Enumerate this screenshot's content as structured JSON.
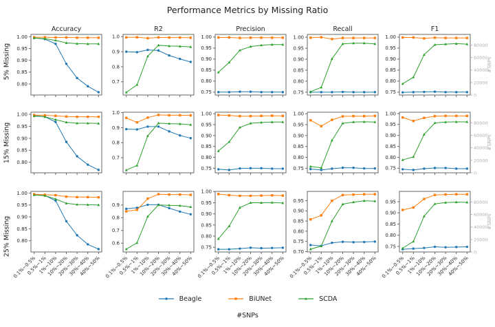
{
  "chart_data": {
    "type": "line",
    "title": "Performance Metrics by Missing Ratio",
    "xlabel": "#SNPs",
    "x_categories": [
      "0.1%~0.5%",
      "0.5%~1%",
      "1%~10%",
      "10%~20%",
      "20%~30%",
      "30%~40%",
      "40%~50%"
    ],
    "columns": [
      "Accuracy",
      "R2",
      "Precision",
      "Recall",
      "F1"
    ],
    "legend": [
      {
        "label": "Beagle",
        "color": "#1f77b4",
        "marker": "circle"
      },
      {
        "label": "BiUNet",
        "color": "#ff7f0e",
        "marker": "square"
      },
      {
        "label": "SCDA",
        "color": "#2ca02c",
        "marker": "triangle"
      }
    ],
    "right_axis": {
      "label": "#SNPs",
      "ticks": [
        0,
        20000,
        40000,
        60000,
        80000
      ],
      "lim": [
        0,
        97000
      ],
      "color": "#b0b0b0"
    },
    "axis_color": "#666666",
    "tick_text_color": "#262626",
    "rows": [
      {
        "label": "5% Missing",
        "panels": [
          {
            "metric": "Accuracy",
            "yticks": [
              0.8,
              0.85,
              0.9,
              0.95,
              1.0
            ],
            "decimals": 2,
            "ylim": [
              0.753,
              1.01
            ],
            "series": [
              [
                0.995,
                0.99,
                0.97,
                0.885,
                0.825,
                0.79,
                0.765
              ],
              [
                0.998,
                0.998,
                0.997,
                0.997,
                0.996,
                0.996,
                0.996
              ],
              [
                0.995,
                0.992,
                0.985,
                0.974,
                0.971,
                0.97,
                0.97
              ]
            ]
          },
          {
            "metric": "R2",
            "yticks": [
              0.7,
              0.8,
              0.9,
              1.0
            ],
            "decimals": 1,
            "ylim": [
              0.612,
              1.015
            ],
            "series": [
              [
                0.9,
                0.897,
                0.912,
                0.908,
                0.875,
                0.852,
                0.832
              ],
              [
                0.995,
                0.996,
                0.99,
                0.995,
                0.994,
                0.994,
                0.993
              ],
              [
                0.63,
                0.68,
                0.87,
                0.943,
                0.938,
                0.936,
                0.932
              ]
            ]
          },
          {
            "metric": "Precision",
            "yticks": [
              0.75,
              0.8,
              0.85,
              0.9,
              0.95,
              1.0
            ],
            "decimals": 2,
            "ylim": [
              0.737,
              1.012
            ],
            "series": [
              [
                0.75,
                0.75,
                0.752,
                0.752,
                0.75,
                0.75,
                0.75
              ],
              [
                0.998,
                0.998,
                0.996,
                0.997,
                0.997,
                0.997,
                0.997
              ],
              [
                0.84,
                0.885,
                0.94,
                0.957,
                0.963,
                0.966,
                0.966
              ]
            ]
          },
          {
            "metric": "Recall",
            "yticks": [
              0.75,
              0.8,
              0.85,
              0.9,
              0.95,
              1.0
            ],
            "decimals": 2,
            "ylim": [
              0.737,
              1.013
            ],
            "series": [
              [
                0.75,
                0.75,
                0.75,
                0.751,
                0.75,
                0.75,
                0.75
              ],
              [
                0.998,
                1.0,
                0.992,
                0.997,
                0.997,
                0.997,
                0.997
              ],
              [
                0.752,
                0.772,
                0.902,
                0.97,
                0.973,
                0.973,
                0.97
              ]
            ]
          },
          {
            "metric": "F1",
            "yticks": [
              0.75,
              0.8,
              0.85,
              0.9,
              0.95,
              1.0
            ],
            "decimals": 2,
            "ylim": [
              0.737,
              1.012
            ],
            "series": [
              [
                0.749,
                0.75,
                0.751,
                0.752,
                0.75,
                0.75,
                0.75
              ],
              [
                0.998,
                0.998,
                0.994,
                0.997,
                0.996,
                0.996,
                0.996
              ],
              [
                0.788,
                0.818,
                0.92,
                0.965,
                0.968,
                0.97,
                0.968
              ]
            ]
          }
        ]
      },
      {
        "label": "15% Missing",
        "panels": [
          {
            "metric": "Accuracy",
            "yticks": [
              0.8,
              0.85,
              0.9,
              0.95,
              1.0
            ],
            "decimals": 2,
            "ylim": [
              0.756,
              1.009
            ],
            "series": [
              [
                0.995,
                0.99,
                0.968,
                0.885,
                0.825,
                0.79,
                0.768
              ],
              [
                0.997,
                0.996,
                0.994,
                0.991,
                0.99,
                0.99,
                0.99
              ],
              [
                0.993,
                0.99,
                0.978,
                0.967,
                0.963,
                0.963,
                0.962
              ]
            ]
          },
          {
            "metric": "R2",
            "yticks": [
              0.7,
              0.8,
              0.9,
              1.0
            ],
            "decimals": 1,
            "ylim": [
              0.599,
              1.003
            ],
            "series": [
              [
                0.89,
                0.888,
                0.907,
                0.907,
                0.875,
                0.848,
                0.83
              ],
              [
                0.965,
                0.935,
                0.967,
                0.985,
                0.983,
                0.983,
                0.982
              ],
              [
                0.617,
                0.648,
                0.845,
                0.93,
                0.927,
                0.925,
                0.92
              ]
            ]
          },
          {
            "metric": "Precision",
            "yticks": [
              0.75,
              0.8,
              0.85,
              0.9,
              0.95,
              1.0
            ],
            "decimals": 2,
            "ylim": [
              0.729,
              1.007
            ],
            "series": [
              [
                0.745,
                0.742,
                0.749,
                0.75,
                0.75,
                0.748,
                0.748
              ],
              [
                0.994,
                0.992,
                0.989,
                0.989,
                0.99,
                0.991,
                0.99
              ],
              [
                0.829,
                0.871,
                0.937,
                0.956,
                0.96,
                0.962,
                0.962
              ]
            ]
          },
          {
            "metric": "Recall",
            "yticks": [
              0.75,
              0.8,
              0.85,
              0.9,
              0.95,
              1.0
            ],
            "decimals": 2,
            "ylim": [
              0.729,
              1.007
            ],
            "series": [
              [
                0.746,
                0.742,
                0.748,
                0.752,
                0.752,
                0.749,
                0.749
              ],
              [
                0.97,
                0.943,
                0.972,
                0.988,
                0.989,
                0.989,
                0.99
              ],
              [
                0.758,
                0.752,
                0.878,
                0.956,
                0.962,
                0.963,
                0.962
              ]
            ]
          },
          {
            "metric": "F1",
            "yticks": [
              0.75,
              0.8,
              0.85,
              0.9,
              0.95,
              1.0
            ],
            "decimals": 2,
            "ylim": [
              0.729,
              1.006
            ],
            "series": [
              [
                0.745,
                0.742,
                0.748,
                0.751,
                0.751,
                0.748,
                0.748
              ],
              [
                0.982,
                0.966,
                0.98,
                0.988,
                0.989,
                0.989,
                0.989
              ],
              [
                0.788,
                0.802,
                0.905,
                0.957,
                0.961,
                0.962,
                0.962
              ]
            ]
          }
        ]
      },
      {
        "label": "25% Missing",
        "panels": [
          {
            "metric": "Accuracy",
            "yticks": [
              0.8,
              0.85,
              0.9,
              0.95,
              1.0
            ],
            "decimals": 2,
            "ylim": [
              0.753,
              1.007
            ],
            "series": [
              [
                0.995,
                0.99,
                0.968,
                0.882,
                0.823,
                0.785,
                0.765
              ],
              [
                0.995,
                0.993,
                0.991,
                0.985,
                0.983,
                0.983,
                0.982
              ],
              [
                0.992,
                0.989,
                0.975,
                0.957,
                0.952,
                0.951,
                0.95
              ]
            ]
          },
          {
            "metric": "R2",
            "yticks": [
              0.6,
              0.7,
              0.8,
              0.9
            ],
            "decimals": 1,
            "ylim": [
              0.531,
              1.007
            ],
            "series": [
              [
                0.87,
                0.878,
                0.902,
                0.902,
                0.875,
                0.848,
                0.827
              ],
              [
                0.85,
                0.862,
                0.95,
                0.985,
                0.982,
                0.982,
                0.98
              ],
              [
                0.553,
                0.603,
                0.81,
                0.9,
                0.898,
                0.895,
                0.885
              ]
            ]
          },
          {
            "metric": "Precision",
            "yticks": [
              0.75,
              0.8,
              0.85,
              0.9,
              0.95,
              1.0
            ],
            "decimals": 2,
            "ylim": [
              0.729,
              1.001
            ],
            "series": [
              [
                0.741,
                0.741,
                0.744,
                0.748,
                0.746,
                0.747,
                0.748
              ],
              [
                0.989,
                0.984,
                0.981,
                0.981,
                0.982,
                0.983,
                0.982
              ],
              [
                0.788,
                0.845,
                0.928,
                0.95,
                0.95,
                0.951,
                0.949
              ]
            ]
          },
          {
            "metric": "Recall",
            "yticks": [
              0.7,
              0.75,
              0.8,
              0.85,
              0.9,
              0.95
            ],
            "decimals": 2,
            "ylim": [
              0.698,
              0.996
            ],
            "series": [
              [
                0.732,
                0.728,
                0.743,
                0.748,
                0.746,
                0.747,
                0.749
              ],
              [
                0.858,
                0.878,
                0.95,
                0.978,
                0.98,
                0.982,
                0.982
              ],
              [
                0.712,
                0.727,
                0.85,
                0.933,
                0.943,
                0.95,
                0.948
              ]
            ]
          },
          {
            "metric": "F1",
            "yticks": [
              0.75,
              0.8,
              0.85,
              0.9,
              0.95
            ],
            "decimals": 2,
            "ylim": [
              0.725,
              0.996
            ],
            "series": [
              [
                0.737,
                0.74,
                0.743,
                0.748,
                0.746,
                0.747,
                0.748
              ],
              [
                0.913,
                0.924,
                0.962,
                0.98,
                0.982,
                0.983,
                0.983
              ],
              [
                0.742,
                0.772,
                0.885,
                0.94,
                0.946,
                0.948,
                0.947
              ]
            ]
          }
        ]
      }
    ]
  }
}
